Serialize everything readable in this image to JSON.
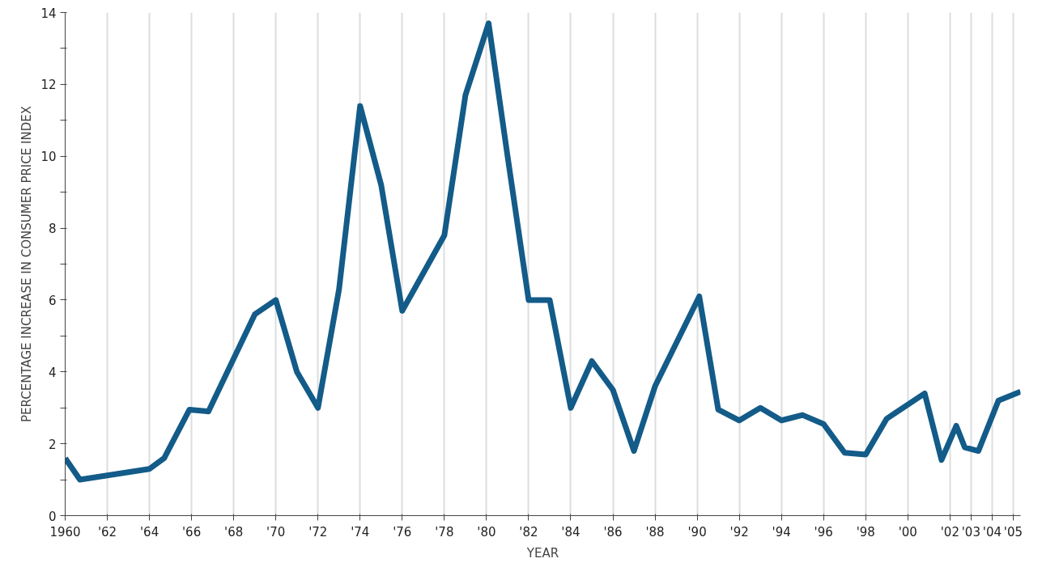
{
  "chart_data": {
    "type": "line",
    "xlabel": "YEAR",
    "ylabel": "PERCENTAGE INCREASE IN CONSUMER PRICE INDEX",
    "x": [
      1960,
      1960.7,
      1964,
      1964.7,
      1965.9,
      1966.8,
      1969,
      1970,
      1971,
      1972,
      1973,
      1974,
      1975,
      1976,
      1978,
      1979,
      1980.1,
      1981,
      1982,
      1983,
      1984,
      1985,
      1986,
      1987,
      1988,
      1990.1,
      1991,
      1992,
      1993,
      1994,
      1995,
      1996,
      1997,
      1998,
      1999,
      2000.8,
      2001.6,
      2002.3,
      2002.7,
      2003.35,
      2004.3,
      2005.35
    ],
    "series": [
      {
        "color": "#135b88",
        "values": [
          1.6,
          1.0,
          1.3,
          1.6,
          2.95,
          2.9,
          5.6,
          6.0,
          4.0,
          3.0,
          6.3,
          11.4,
          9.2,
          5.7,
          7.8,
          11.7,
          13.7,
          10.0,
          6.0,
          6.0,
          3.0,
          4.3,
          3.5,
          1.8,
          3.6,
          6.1,
          2.95,
          2.65,
          3.0,
          2.65,
          2.8,
          2.55,
          1.75,
          1.7,
          2.7,
          3.4,
          1.55,
          2.5,
          1.9,
          1.8,
          3.2,
          3.45
        ]
      }
    ],
    "xlim": [
      1960,
      2005.35
    ],
    "xticks": [
      {
        "value": 1960,
        "label": "1960"
      },
      {
        "value": 1962,
        "label": "'62"
      },
      {
        "value": 1964,
        "label": "'64"
      },
      {
        "value": 1966,
        "label": "'66"
      },
      {
        "value": 1968,
        "label": "'68"
      },
      {
        "value": 1970,
        "label": "'70"
      },
      {
        "value": 1972,
        "label": "'72"
      },
      {
        "value": 1974,
        "label": "'74"
      },
      {
        "value": 1976,
        "label": "'76"
      },
      {
        "value": 1978,
        "label": "'78"
      },
      {
        "value": 1980,
        "label": "'80"
      },
      {
        "value": 1982,
        "label": "'82"
      },
      {
        "value": 1984,
        "label": "'84"
      },
      {
        "value": 1986,
        "label": "'86"
      },
      {
        "value": 1988,
        "label": "'88"
      },
      {
        "value": 1990,
        "label": "'90"
      },
      {
        "value": 1992,
        "label": "'92"
      },
      {
        "value": 1994,
        "label": "'94"
      },
      {
        "value": 1996,
        "label": "'96"
      },
      {
        "value": 1998,
        "label": "'98"
      },
      {
        "value": 2000,
        "label": "'00"
      },
      {
        "value": 2002,
        "label": "'02"
      },
      {
        "value": 2003,
        "label": "'03"
      },
      {
        "value": 2004,
        "label": "'04"
      },
      {
        "value": 2005,
        "label": "'05"
      }
    ],
    "ylim": [
      0,
      14
    ],
    "yticks": [
      0,
      {
        "value": 1,
        "label": null
      },
      2,
      {
        "value": 3,
        "label": null
      },
      4,
      {
        "value": 5,
        "label": null
      },
      6,
      {
        "value": 7,
        "label": null
      },
      8,
      {
        "value": 9,
        "label": null
      },
      10,
      {
        "value": 11,
        "label": null
      },
      12,
      {
        "value": 13,
        "label": null
      },
      14
    ],
    "grid": "x",
    "marker": "none",
    "line_style": "solid"
  }
}
